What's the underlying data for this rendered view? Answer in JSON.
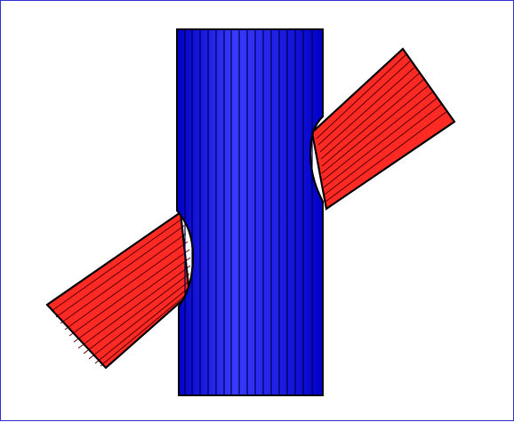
{
  "figure": {
    "objects": [
      {
        "name": "horizontal-cylinder",
        "fill": "#ff2a24",
        "stroke": "#000000",
        "stripe_count": 12
      },
      {
        "name": "vertical-cylinder",
        "fill": "#1010ff",
        "stroke": "#000000",
        "stripe_count": 17
      }
    ],
    "frame_color": "#2f2fd6",
    "background": "#ffffff"
  }
}
